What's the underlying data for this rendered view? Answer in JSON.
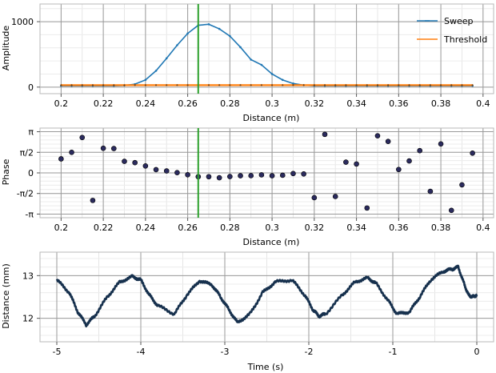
{
  "chart_data": [
    {
      "type": "line",
      "xlabel": "Distance (m)",
      "ylabel": "Amplitude",
      "xlim": [
        0.19,
        0.405
      ],
      "ylim": [
        -100,
        1270
      ],
      "xticks": [
        0.2,
        0.22,
        0.24,
        0.26,
        0.28,
        0.3,
        0.32,
        0.34,
        0.36,
        0.38,
        0.4
      ],
      "xtick_labels": [
        "0.2",
        "0.22",
        "0.24",
        "0.26",
        "0.28",
        "0.3",
        "0.32",
        "0.34",
        "0.36",
        "0.38",
        "0.4"
      ],
      "yticks": [
        0,
        1000
      ],
      "ytick_labels": [
        "0",
        "1000"
      ],
      "grid": true,
      "legend": "top-right",
      "marker_line": {
        "x": 0.265,
        "color": "#2ca02c"
      },
      "series": [
        {
          "name": "Sweep",
          "color": "#1f77b4",
          "x": [
            0.2,
            0.205,
            0.21,
            0.215,
            0.22,
            0.225,
            0.23,
            0.235,
            0.24,
            0.245,
            0.25,
            0.255,
            0.26,
            0.265,
            0.27,
            0.275,
            0.28,
            0.285,
            0.29,
            0.295,
            0.3,
            0.305,
            0.31,
            0.315,
            0.32,
            0.325,
            0.33,
            0.335,
            0.34,
            0.345,
            0.35,
            0.355,
            0.36,
            0.365,
            0.37,
            0.375,
            0.38,
            0.385,
            0.39,
            0.395
          ],
          "y": [
            20,
            20,
            20,
            20,
            20,
            20,
            25,
            45,
            110,
            250,
            440,
            640,
            820,
            945,
            960,
            890,
            780,
            610,
            420,
            340,
            200,
            110,
            55,
            30,
            20,
            20,
            20,
            20,
            20,
            20,
            20,
            20,
            20,
            20,
            20,
            20,
            20,
            20,
            20,
            20
          ]
        },
        {
          "name": "Threshold",
          "color": "#ff7f0e",
          "x": [
            0.2,
            0.205,
            0.21,
            0.215,
            0.22,
            0.225,
            0.23,
            0.235,
            0.24,
            0.245,
            0.25,
            0.255,
            0.26,
            0.265,
            0.27,
            0.275,
            0.28,
            0.285,
            0.29,
            0.295,
            0.3,
            0.305,
            0.31,
            0.315,
            0.32,
            0.325,
            0.33,
            0.335,
            0.34,
            0.345,
            0.35,
            0.355,
            0.36,
            0.365,
            0.37,
            0.375,
            0.38,
            0.385,
            0.39,
            0.395
          ],
          "y": [
            30,
            30,
            30,
            30,
            30,
            30,
            30,
            30,
            30,
            30,
            30,
            30,
            30,
            30,
            30,
            30,
            30,
            30,
            30,
            30,
            30,
            30,
            30,
            30,
            30,
            30,
            30,
            30,
            30,
            30,
            30,
            30,
            30,
            30,
            30,
            30,
            30,
            30,
            30,
            30
          ]
        }
      ]
    },
    {
      "type": "scatter",
      "xlabel": "Distance (m)",
      "ylabel": "Phase",
      "xlim": [
        0.19,
        0.405
      ],
      "ylim": [
        -3.42,
        3.42
      ],
      "xticks": [
        0.2,
        0.22,
        0.24,
        0.26,
        0.28,
        0.3,
        0.32,
        0.34,
        0.36,
        0.38,
        0.4
      ],
      "xtick_labels": [
        "0.2",
        "0.22",
        "0.24",
        "0.26",
        "0.28",
        "0.3",
        "0.32",
        "0.34",
        "0.36",
        "0.38",
        "0.4"
      ],
      "yticks": [
        -3.14159,
        -1.5708,
        0,
        1.5708,
        3.14159
      ],
      "ytick_labels": [
        "-π",
        "-π/2",
        "0",
        "π/2",
        "π"
      ],
      "grid": true,
      "marker_line": {
        "x": 0.265,
        "color": "#2ca02c"
      },
      "points": {
        "color": "#2b2b5e",
        "x": [
          0.2,
          0.205,
          0.21,
          0.215,
          0.22,
          0.225,
          0.23,
          0.235,
          0.24,
          0.245,
          0.25,
          0.255,
          0.26,
          0.265,
          0.27,
          0.275,
          0.28,
          0.285,
          0.29,
          0.295,
          0.3,
          0.305,
          0.31,
          0.315,
          0.32,
          0.325,
          0.33,
          0.335,
          0.34,
          0.345,
          0.35,
          0.355,
          0.36,
          0.365,
          0.37,
          0.375,
          0.38,
          0.385,
          0.39,
          0.395
        ],
        "y": [
          1.07,
          1.57,
          2.7,
          -2.1,
          1.88,
          1.86,
          0.88,
          0.78,
          0.53,
          0.25,
          0.15,
          0.02,
          -0.14,
          -0.29,
          -0.29,
          -0.37,
          -0.28,
          -0.22,
          -0.21,
          -0.15,
          -0.22,
          -0.18,
          -0.05,
          -0.08,
          -1.89,
          2.94,
          -1.8,
          0.82,
          0.68,
          -2.68,
          2.83,
          2.4,
          0.26,
          0.91,
          1.7,
          -1.41,
          2.21,
          -2.86,
          -0.91,
          1.51
        ]
      }
    },
    {
      "type": "line",
      "xlabel": "Time (s)",
      "ylabel": "Distance (mm)",
      "xlim": [
        -5.2,
        0.2
      ],
      "ylim": [
        11.45,
        13.55
      ],
      "xticks": [
        -5,
        -4,
        -3,
        -2,
        -1,
        0
      ],
      "xtick_labels": [
        "-5",
        "-4",
        "-3",
        "-2",
        "-1",
        "0"
      ],
      "yticks": [
        12,
        13
      ],
      "ytick_labels": [
        "12",
        "13"
      ],
      "grid": true,
      "series": [
        {
          "name": "",
          "color": "#16304d",
          "x": [
            -5.0,
            -4.85,
            -4.75,
            -4.65,
            -4.55,
            -4.4,
            -4.25,
            -4.1,
            -4.0,
            -3.9,
            -3.8,
            -3.6,
            -3.45,
            -3.3,
            -3.15,
            -3.05,
            -2.95,
            -2.85,
            -2.7,
            -2.55,
            -2.4,
            -2.2,
            -2.05,
            -1.95,
            -1.88,
            -1.8,
            -1.6,
            -1.45,
            -1.3,
            -1.2,
            -1.05,
            -0.95,
            -0.8,
            -0.68,
            -0.55,
            -0.4,
            -0.3,
            -0.22,
            -0.15,
            -0.1,
            -0.05,
            0.0
          ],
          "y": [
            12.9,
            12.6,
            12.15,
            11.85,
            12.05,
            12.5,
            12.85,
            12.98,
            12.9,
            12.55,
            12.3,
            12.1,
            12.55,
            12.88,
            12.78,
            12.5,
            12.2,
            11.9,
            12.1,
            12.6,
            12.85,
            12.9,
            12.55,
            12.2,
            12.05,
            12.1,
            12.55,
            12.85,
            12.95,
            12.82,
            12.4,
            12.1,
            12.15,
            12.5,
            12.9,
            13.1,
            13.15,
            13.2,
            12.8,
            12.55,
            12.5,
            12.55
          ]
        }
      ]
    }
  ]
}
